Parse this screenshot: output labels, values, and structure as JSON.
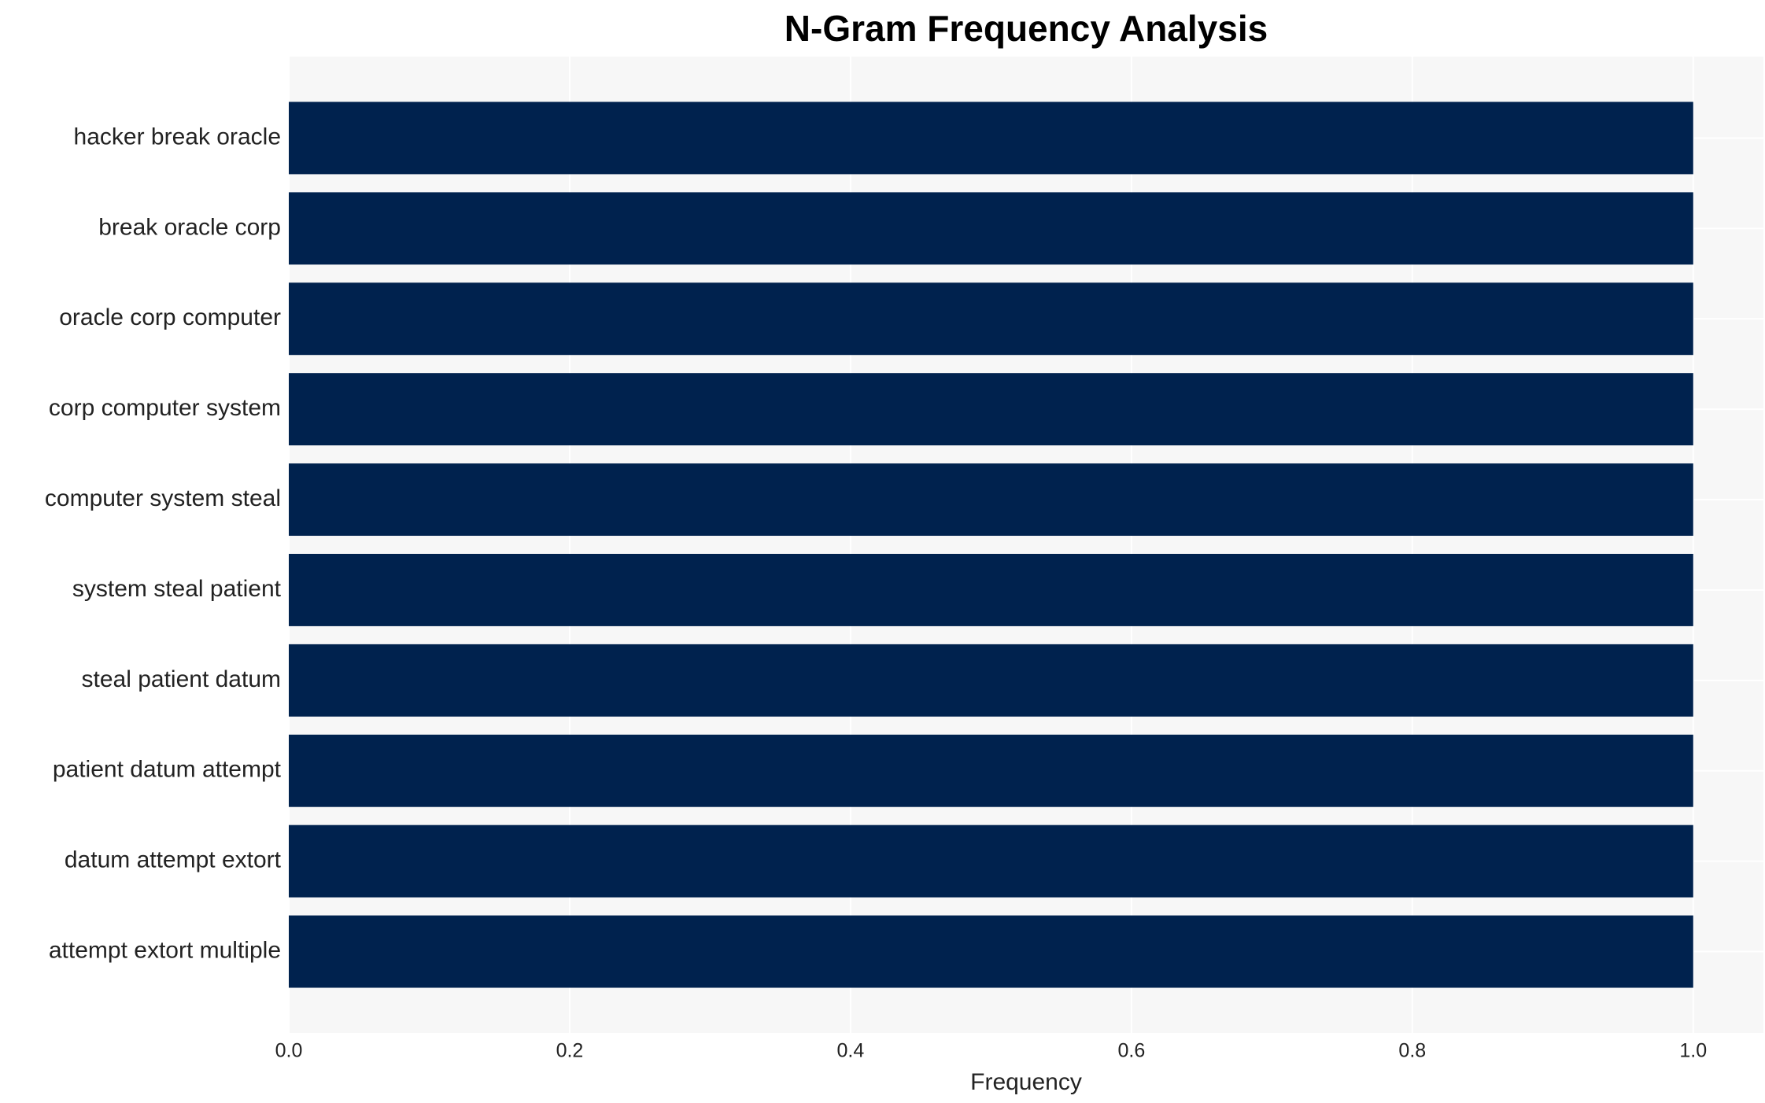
{
  "chart_data": {
    "type": "bar",
    "orientation": "horizontal",
    "title": "N-Gram Frequency Analysis",
    "xlabel": "Frequency",
    "categories": [
      "hacker break oracle",
      "break oracle corp",
      "oracle corp computer",
      "corp computer system",
      "computer system steal",
      "system steal patient",
      "steal patient datum",
      "patient datum attempt",
      "datum attempt extort",
      "attempt extort multiple"
    ],
    "values": [
      1,
      1,
      1,
      1,
      1,
      1,
      1,
      1,
      1,
      1
    ],
    "color": "#00224e",
    "xlim": [
      0,
      1.05
    ],
    "xticks": [
      {
        "value": 0,
        "label": "0.0"
      },
      0.2,
      0.4,
      0.6,
      0.8,
      {
        "value": 1,
        "label": "1.0"
      }
    ],
    "grid": true
  }
}
